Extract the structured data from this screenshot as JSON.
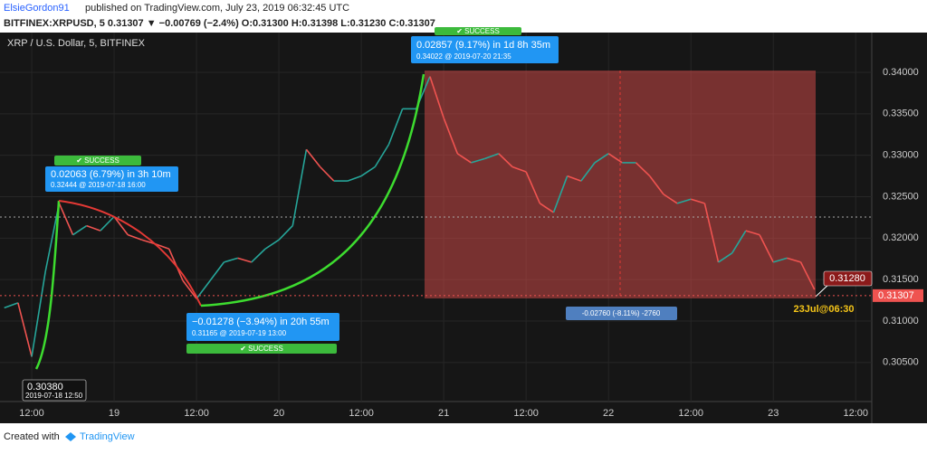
{
  "header": {
    "publisher": "ElsieGordon91",
    "published_text": "published on TradingView.com, July 23, 2019 06:32:45 UTC",
    "symbol_line": "BITFINEX:XRPUSD, 5  0.31307 ▼ −0.00769 (−2.4%) O:0.31300 H:0.31398 L:0.31230 C:0.31307"
  },
  "chart_data": {
    "type": "line",
    "title": "XRP / U.S. Dollar, 5, BITFINEX",
    "categories": [
      null,
      null,
      "12:00",
      null,
      null,
      null,
      null,
      null,
      "19",
      null,
      null,
      null,
      null,
      null,
      "12:00",
      null,
      null,
      null,
      null,
      null,
      "20",
      null,
      null,
      null,
      null,
      null,
      "12:00",
      null,
      null,
      null,
      null,
      null,
      "21",
      null,
      null,
      null,
      null,
      null,
      "12:00",
      null,
      null,
      null,
      null,
      null,
      "22",
      null,
      null,
      null,
      null,
      null,
      "12:00",
      null,
      null,
      null,
      null,
      null,
      "23",
      null,
      null,
      null,
      null,
      null,
      "12:00"
    ],
    "series": [
      {
        "name": "XRPUSD",
        "up_color": "#26a69a",
        "down_color": "#ef5350",
        "values": [
          0.3116,
          0.3122,
          0.3057,
          0.316,
          0.3242,
          0.3204,
          0.3215,
          0.3209,
          0.3226,
          0.3204,
          0.3198,
          0.3193,
          0.3187,
          0.3149,
          0.3127,
          0.3149,
          0.3171,
          0.3176,
          0.3171,
          0.3187,
          0.3198,
          0.3215,
          0.3307,
          0.3286,
          0.3269,
          0.3269,
          0.3275,
          0.3286,
          0.3313,
          0.3356,
          0.3356,
          0.3395,
          0.3345,
          0.3302,
          0.3291,
          0.3296,
          0.3302,
          0.3286,
          0.328,
          0.3242,
          0.3231,
          0.3275,
          0.3269,
          0.3291,
          0.3302,
          0.3291,
          0.3291,
          0.3275,
          0.3253,
          0.3242,
          0.3247,
          0.3242,
          0.3171,
          0.3182,
          0.3209,
          0.3204,
          0.3171,
          0.3176,
          0.3171,
          0.3138,
          null,
          null,
          null
        ]
      }
    ],
    "ylim": [
      0.298,
      0.3448
    ],
    "yticks": [
      {
        "value": 0.305,
        "label": "0.30500"
      },
      {
        "value": 0.31,
        "label": "0.31000"
      },
      {
        "value": 0.315,
        "label": "0.31500"
      },
      {
        "value": 0.32,
        "label": "0.32000"
      },
      {
        "value": 0.325,
        "label": "0.32500"
      },
      {
        "value": 0.33,
        "label": "0.33000"
      },
      {
        "value": 0.335,
        "label": "0.33500"
      },
      {
        "value": 0.34,
        "label": "0.34000"
      }
    ],
    "last_price": 0.31307,
    "grid": true,
    "annotations": {
      "a1": {
        "status": "✔ SUCCESS",
        "line1": "0.02063 (6.79%) in 3h 10m",
        "line2": "0.32444  @ 2019-07-18  16:00"
      },
      "a2": {
        "status": "✔ SUCCESS",
        "line1": "0.02857 (9.17%) in 1d 8h 35m",
        "line2": "0.34022  @ 2019-07-20  21:35"
      },
      "a3": {
        "status": "✔ SUCCESS",
        "line1": "−0.01278 (−3.94%) in 20h 55m",
        "line2": "0.31165  @ 2019-07-19  13:00"
      },
      "low": {
        "line1": "0.30380",
        "line2": "2019-07-18 12:50"
      },
      "range": "-0.02760 (-8.11%) -2760",
      "pointer": "0.31280",
      "pointer_time": "23Jul@06:30"
    }
  },
  "footer": {
    "created": "Created with",
    "brand": "TradingView"
  }
}
